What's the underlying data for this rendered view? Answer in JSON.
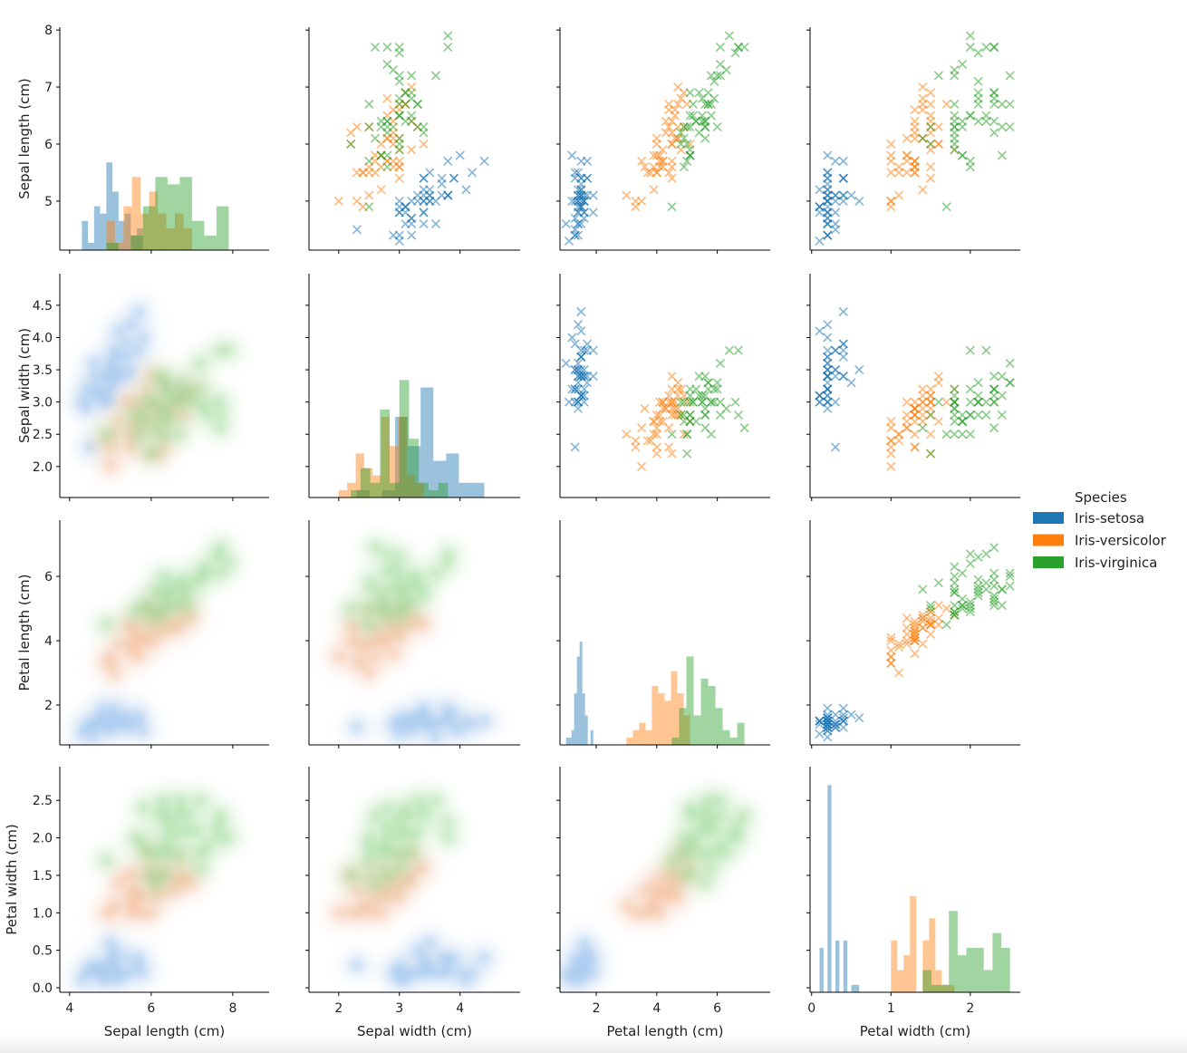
{
  "chart_data": {
    "type": "scatter-matrix",
    "diagonal": "histogram",
    "upper": "scatter",
    "lower": "kde",
    "marker": "x",
    "hist_bins": 10,
    "hist_count_ylim": [
      0,
      30.5
    ],
    "legend": {
      "title": "Species",
      "placement": "right"
    },
    "variables": [
      {
        "label": "Sepal length (cm)",
        "xlim": [
          3.76,
          8.89
        ],
        "ylim": [
          4.14,
          8.05
        ],
        "xticks": [
          4,
          6,
          8
        ],
        "xtick_labels": [
          "4",
          "6",
          "8"
        ],
        "yticks": [
          5,
          6,
          7,
          8
        ],
        "ytick_labels": [
          "5",
          "6",
          "7",
          "8"
        ]
      },
      {
        "label": "Sepal width (cm)",
        "xlim": [
          1.51,
          4.99
        ],
        "ylim": [
          1.52,
          4.99
        ],
        "xticks": [
          2,
          3,
          4
        ],
        "xtick_labels": [
          "2",
          "3",
          "4"
        ],
        "yticks": [
          2.0,
          2.5,
          3.0,
          3.5,
          4.0,
          4.5
        ],
        "ytick_labels": [
          "2.0",
          "2.5",
          "3.0",
          "3.5",
          "4.0",
          "4.5"
        ]
      },
      {
        "label": "Petal length (cm)",
        "xlim": [
          0.8,
          7.75
        ],
        "ylim": [
          0.76,
          7.75
        ],
        "xticks": [
          2,
          4,
          6
        ],
        "xtick_labels": [
          "2",
          "4",
          "6"
        ],
        "yticks": [
          2,
          4,
          6
        ],
        "ytick_labels": [
          "2",
          "4",
          "6"
        ]
      },
      {
        "label": "Petal width (cm)",
        "xlim": [
          -0.02,
          2.63
        ],
        "ylim": [
          -0.06,
          2.95
        ],
        "xticks": [
          0,
          1,
          2
        ],
        "xtick_labels": [
          "0",
          "1",
          "2"
        ],
        "yticks": [
          0.0,
          0.5,
          1.0,
          1.5,
          2.0,
          2.5
        ],
        "ytick_labels": [
          "0.0",
          "0.5",
          "1.0",
          "1.5",
          "2.0",
          "2.5"
        ]
      }
    ],
    "series": [
      {
        "name": "Iris-setosa",
        "color": "#1f77b4",
        "kde_light": "#b5d0f0",
        "kde_dark": "#5d9fe3",
        "rows": [
          [
            5.1,
            3.5,
            1.4,
            0.2
          ],
          [
            4.9,
            3.0,
            1.4,
            0.2
          ],
          [
            4.7,
            3.2,
            1.3,
            0.2
          ],
          [
            4.6,
            3.1,
            1.5,
            0.2
          ],
          [
            5.0,
            3.6,
            1.4,
            0.2
          ],
          [
            5.4,
            3.9,
            1.7,
            0.4
          ],
          [
            4.6,
            3.4,
            1.4,
            0.3
          ],
          [
            5.0,
            3.4,
            1.5,
            0.2
          ],
          [
            4.4,
            2.9,
            1.4,
            0.2
          ],
          [
            4.9,
            3.1,
            1.5,
            0.1
          ],
          [
            5.4,
            3.7,
            1.5,
            0.2
          ],
          [
            4.8,
            3.4,
            1.6,
            0.2
          ],
          [
            4.8,
            3.0,
            1.4,
            0.1
          ],
          [
            4.3,
            3.0,
            1.1,
            0.1
          ],
          [
            5.8,
            4.0,
            1.2,
            0.2
          ],
          [
            5.7,
            4.4,
            1.5,
            0.4
          ],
          [
            5.4,
            3.9,
            1.3,
            0.4
          ],
          [
            5.1,
            3.5,
            1.4,
            0.3
          ],
          [
            5.7,
            3.8,
            1.7,
            0.3
          ],
          [
            5.1,
            3.8,
            1.5,
            0.3
          ],
          [
            5.4,
            3.4,
            1.7,
            0.2
          ],
          [
            5.1,
            3.7,
            1.5,
            0.4
          ],
          [
            4.6,
            3.6,
            1.0,
            0.2
          ],
          [
            5.1,
            3.3,
            1.7,
            0.5
          ],
          [
            4.8,
            3.4,
            1.9,
            0.2
          ],
          [
            5.0,
            3.0,
            1.6,
            0.2
          ],
          [
            5.0,
            3.4,
            1.6,
            0.4
          ],
          [
            5.2,
            3.5,
            1.5,
            0.2
          ],
          [
            5.2,
            3.4,
            1.4,
            0.2
          ],
          [
            4.7,
            3.2,
            1.6,
            0.2
          ],
          [
            4.8,
            3.1,
            1.6,
            0.2
          ],
          [
            5.4,
            3.4,
            1.5,
            0.4
          ],
          [
            5.2,
            4.1,
            1.5,
            0.1
          ],
          [
            5.5,
            4.2,
            1.4,
            0.2
          ],
          [
            4.9,
            3.1,
            1.5,
            0.1
          ],
          [
            5.0,
            3.2,
            1.2,
            0.2
          ],
          [
            5.5,
            3.5,
            1.3,
            0.2
          ],
          [
            4.9,
            3.1,
            1.5,
            0.1
          ],
          [
            4.4,
            3.0,
            1.3,
            0.2
          ],
          [
            5.1,
            3.4,
            1.5,
            0.2
          ],
          [
            5.0,
            3.5,
            1.3,
            0.3
          ],
          [
            4.5,
            2.3,
            1.3,
            0.3
          ],
          [
            4.4,
            3.2,
            1.3,
            0.2
          ],
          [
            5.0,
            3.5,
            1.6,
            0.6
          ],
          [
            5.1,
            3.8,
            1.9,
            0.4
          ],
          [
            4.8,
            3.0,
            1.4,
            0.3
          ],
          [
            5.1,
            3.8,
            1.6,
            0.2
          ],
          [
            4.6,
            3.2,
            1.4,
            0.2
          ],
          [
            5.3,
            3.7,
            1.5,
            0.2
          ],
          [
            5.0,
            3.3,
            1.4,
            0.2
          ]
        ]
      },
      {
        "name": "Iris-versicolor",
        "color": "#ff7f0e",
        "kde_light": "#f6c9b0",
        "kde_dark": "#eb9a60",
        "rows": [
          [
            7.0,
            3.2,
            4.7,
            1.4
          ],
          [
            6.4,
            3.2,
            4.5,
            1.5
          ],
          [
            6.9,
            3.1,
            4.9,
            1.5
          ],
          [
            5.5,
            2.3,
            4.0,
            1.3
          ],
          [
            6.5,
            2.8,
            4.6,
            1.5
          ],
          [
            5.7,
            2.8,
            4.5,
            1.3
          ],
          [
            6.3,
            3.3,
            4.7,
            1.6
          ],
          [
            4.9,
            2.4,
            3.3,
            1.0
          ],
          [
            6.6,
            2.9,
            4.6,
            1.3
          ],
          [
            5.2,
            2.7,
            3.9,
            1.4
          ],
          [
            5.0,
            2.0,
            3.5,
            1.0
          ],
          [
            5.9,
            3.0,
            4.2,
            1.5
          ],
          [
            6.0,
            2.2,
            4.0,
            1.0
          ],
          [
            6.1,
            2.9,
            4.7,
            1.4
          ],
          [
            5.6,
            2.9,
            3.6,
            1.3
          ],
          [
            6.7,
            3.1,
            4.4,
            1.4
          ],
          [
            5.6,
            3.0,
            4.5,
            1.5
          ],
          [
            5.8,
            2.7,
            4.1,
            1.0
          ],
          [
            6.2,
            2.2,
            4.5,
            1.5
          ],
          [
            5.6,
            2.5,
            3.9,
            1.1
          ],
          [
            5.9,
            3.2,
            4.8,
            1.8
          ],
          [
            6.1,
            2.8,
            4.0,
            1.3
          ],
          [
            6.3,
            2.5,
            4.9,
            1.5
          ],
          [
            6.1,
            2.8,
            4.7,
            1.2
          ],
          [
            6.4,
            2.9,
            4.3,
            1.3
          ],
          [
            6.6,
            3.0,
            4.4,
            1.4
          ],
          [
            6.8,
            2.8,
            4.8,
            1.4
          ],
          [
            6.7,
            3.0,
            5.0,
            1.7
          ],
          [
            6.0,
            2.9,
            4.5,
            1.5
          ],
          [
            5.7,
            2.6,
            3.5,
            1.0
          ],
          [
            5.5,
            2.4,
            3.8,
            1.1
          ],
          [
            5.5,
            2.4,
            3.7,
            1.0
          ],
          [
            5.8,
            2.7,
            3.9,
            1.2
          ],
          [
            6.0,
            2.7,
            5.1,
            1.6
          ],
          [
            5.4,
            3.0,
            4.5,
            1.5
          ],
          [
            6.0,
            3.4,
            4.5,
            1.6
          ],
          [
            6.7,
            3.1,
            4.7,
            1.5
          ],
          [
            6.3,
            2.3,
            4.4,
            1.3
          ],
          [
            5.6,
            3.0,
            4.1,
            1.3
          ],
          [
            5.5,
            2.5,
            4.0,
            1.3
          ],
          [
            5.5,
            2.6,
            4.4,
            1.2
          ],
          [
            6.1,
            3.0,
            4.6,
            1.4
          ],
          [
            5.8,
            2.6,
            4.0,
            1.2
          ],
          [
            5.0,
            2.3,
            3.3,
            1.0
          ],
          [
            5.6,
            2.7,
            4.2,
            1.3
          ],
          [
            5.7,
            3.0,
            4.2,
            1.2
          ],
          [
            5.7,
            2.9,
            4.2,
            1.3
          ],
          [
            6.2,
            2.9,
            4.3,
            1.3
          ],
          [
            5.1,
            2.5,
            3.0,
            1.1
          ],
          [
            5.7,
            2.8,
            4.1,
            1.3
          ]
        ]
      },
      {
        "name": "Iris-virginica",
        "color": "#2ca02c",
        "kde_light": "#b3e4ad",
        "kde_dark": "#78c873",
        "rows": [
          [
            6.3,
            3.3,
            6.0,
            2.5
          ],
          [
            5.8,
            2.7,
            5.1,
            1.9
          ],
          [
            7.1,
            3.0,
            5.9,
            2.1
          ],
          [
            6.3,
            2.9,
            5.6,
            1.8
          ],
          [
            6.5,
            3.0,
            5.8,
            2.2
          ],
          [
            7.6,
            3.0,
            6.6,
            2.1
          ],
          [
            4.9,
            2.5,
            4.5,
            1.7
          ],
          [
            7.3,
            2.9,
            6.3,
            1.8
          ],
          [
            6.7,
            2.5,
            5.8,
            1.8
          ],
          [
            7.2,
            3.6,
            6.1,
            2.5
          ],
          [
            6.5,
            3.2,
            5.1,
            2.0
          ],
          [
            6.4,
            2.7,
            5.3,
            1.9
          ],
          [
            6.8,
            3.0,
            5.5,
            2.1
          ],
          [
            5.7,
            2.5,
            5.0,
            2.0
          ],
          [
            5.8,
            2.8,
            5.1,
            2.4
          ],
          [
            6.4,
            3.2,
            5.3,
            2.3
          ],
          [
            6.5,
            3.0,
            5.5,
            1.8
          ],
          [
            7.7,
            3.8,
            6.7,
            2.2
          ],
          [
            7.7,
            2.6,
            6.9,
            2.3
          ],
          [
            6.0,
            2.2,
            5.0,
            1.5
          ],
          [
            6.9,
            3.2,
            5.7,
            2.3
          ],
          [
            5.6,
            2.8,
            4.9,
            2.0
          ],
          [
            7.7,
            2.8,
            6.7,
            2.0
          ],
          [
            6.3,
            2.7,
            4.9,
            1.8
          ],
          [
            6.7,
            3.3,
            5.7,
            2.1
          ],
          [
            7.2,
            3.2,
            6.0,
            1.8
          ],
          [
            6.2,
            2.8,
            4.8,
            1.8
          ],
          [
            6.1,
            3.0,
            4.9,
            1.8
          ],
          [
            6.4,
            2.8,
            5.6,
            2.1
          ],
          [
            7.2,
            3.0,
            5.8,
            1.6
          ],
          [
            7.4,
            2.8,
            6.1,
            1.9
          ],
          [
            7.9,
            3.8,
            6.4,
            2.0
          ],
          [
            6.4,
            2.8,
            5.6,
            2.2
          ],
          [
            6.3,
            2.8,
            5.1,
            1.5
          ],
          [
            6.1,
            2.6,
            5.6,
            1.4
          ],
          [
            7.7,
            3.0,
            6.1,
            2.3
          ],
          [
            6.3,
            3.4,
            5.6,
            2.4
          ],
          [
            6.4,
            3.1,
            5.5,
            1.8
          ],
          [
            6.0,
            3.0,
            4.8,
            1.8
          ],
          [
            6.9,
            3.1,
            5.4,
            2.1
          ],
          [
            6.7,
            3.1,
            5.6,
            2.4
          ],
          [
            6.9,
            3.1,
            5.1,
            2.3
          ],
          [
            5.8,
            2.7,
            5.1,
            1.9
          ],
          [
            6.8,
            3.2,
            5.9,
            2.3
          ],
          [
            6.7,
            3.3,
            5.7,
            2.5
          ],
          [
            6.7,
            3.0,
            5.2,
            2.3
          ],
          [
            6.3,
            2.5,
            5.0,
            1.9
          ],
          [
            6.5,
            3.0,
            5.2,
            2.0
          ],
          [
            6.2,
            3.4,
            5.4,
            2.3
          ],
          [
            5.9,
            3.0,
            5.1,
            1.8
          ]
        ]
      }
    ]
  }
}
